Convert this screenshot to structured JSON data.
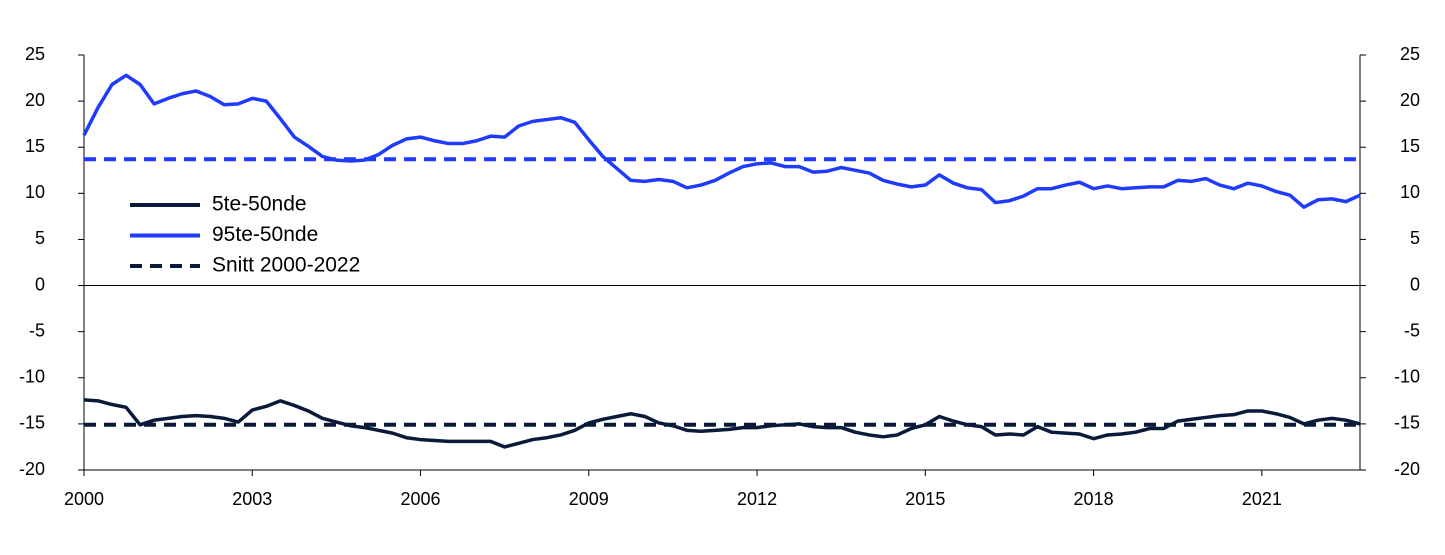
{
  "chart_data": {
    "type": "line",
    "x": [
      2000,
      2000.25,
      2000.5,
      2000.75,
      2001,
      2001.25,
      2001.5,
      2001.75,
      2002,
      2002.25,
      2002.5,
      2002.75,
      2003,
      2003.25,
      2003.5,
      2003.75,
      2004,
      2004.25,
      2004.5,
      2004.75,
      2005,
      2005.25,
      2005.5,
      2005.75,
      2006,
      2006.25,
      2006.5,
      2006.75,
      2007,
      2007.25,
      2007.5,
      2007.75,
      2008,
      2008.25,
      2008.5,
      2008.75,
      2009,
      2009.25,
      2009.5,
      2009.75,
      2010,
      2010.25,
      2010.5,
      2010.75,
      2011,
      2011.25,
      2011.5,
      2011.75,
      2012,
      2012.25,
      2012.5,
      2012.75,
      2013,
      2013.25,
      2013.5,
      2013.75,
      2014,
      2014.25,
      2014.5,
      2014.75,
      2015,
      2015.25,
      2015.5,
      2015.75,
      2016,
      2016.25,
      2016.5,
      2016.75,
      2017,
      2017.25,
      2017.5,
      2017.75,
      2018,
      2018.25,
      2018.5,
      2018.75,
      2019,
      2019.25,
      2019.5,
      2019.75,
      2020,
      2020.25,
      2020.5,
      2020.75,
      2021,
      2021.25,
      2021.5,
      2021.75,
      2022,
      2022.25,
      2022.5,
      2022.75
    ],
    "series": [
      {
        "name": "5te-50nde",
        "color": "#0a1a3a",
        "values": [
          -12.4,
          -12.5,
          -12.9,
          -13.2,
          -15.1,
          -14.6,
          -14.4,
          -14.2,
          -14.1,
          -14.2,
          -14.4,
          -14.8,
          -13.5,
          -13.1,
          -12.5,
          -13.0,
          -13.6,
          -14.4,
          -14.8,
          -15.2,
          -15.4,
          -15.7,
          -16.0,
          -16.5,
          -16.7,
          -16.8,
          -16.9,
          -16.9,
          -16.9,
          -16.9,
          -17.5,
          -17.1,
          -16.7,
          -16.5,
          -16.2,
          -15.7,
          -14.9,
          -14.5,
          -14.2,
          -13.9,
          -14.2,
          -14.9,
          -15.2,
          -15.7,
          -15.8,
          -15.7,
          -15.6,
          -15.4,
          -15.4,
          -15.2,
          -15.1,
          -15.0,
          -15.3,
          -15.4,
          -15.4,
          -15.9,
          -16.2,
          -16.4,
          -16.2,
          -15.5,
          -15.1,
          -14.2,
          -14.7,
          -15.1,
          -15.3,
          -16.2,
          -16.1,
          -16.2,
          -15.3,
          -15.9,
          -16.0,
          -16.1,
          -16.6,
          -16.2,
          -16.1,
          -15.9,
          -15.5,
          -15.5,
          -14.7,
          -14.5,
          -14.3,
          -14.1,
          -14.0,
          -13.6,
          -13.6,
          -13.9,
          -14.3,
          -15.0,
          -14.6,
          -14.4,
          -14.6,
          -15.0
        ]
      },
      {
        "name": "95te-50nde",
        "color": "#1f3bff",
        "values": [
          16.3,
          19.3,
          21.8,
          22.8,
          21.8,
          19.7,
          20.3,
          20.8,
          21.1,
          20.5,
          19.6,
          19.7,
          20.3,
          20.0,
          18.1,
          16.1,
          15.1,
          14.0,
          13.6,
          13.5,
          13.6,
          14.2,
          15.2,
          15.9,
          16.1,
          15.7,
          15.4,
          15.4,
          15.7,
          16.2,
          16.1,
          17.3,
          17.8,
          18.0,
          18.2,
          17.7,
          15.8,
          14.0,
          12.7,
          11.4,
          11.3,
          11.5,
          11.3,
          10.6,
          10.9,
          11.4,
          12.2,
          12.9,
          13.2,
          13.3,
          12.9,
          12.9,
          12.3,
          12.4,
          12.8,
          12.5,
          12.2,
          11.4,
          11.0,
          10.7,
          10.9,
          12.0,
          11.1,
          10.6,
          10.4,
          9.0,
          9.2,
          9.7,
          10.5,
          10.5,
          10.9,
          11.2,
          10.5,
          10.8,
          10.5,
          10.6,
          10.7,
          10.7,
          11.4,
          11.3,
          11.6,
          10.9,
          10.5,
          11.1,
          10.8,
          10.2,
          9.8,
          8.5,
          9.3,
          9.4,
          9.1,
          9.8
        ]
      }
    ],
    "reference_lines": [
      {
        "name": "Snitt 2000-2022",
        "color": "#0a1a3a",
        "value": -15.1
      },
      {
        "color": "#1f3bff",
        "value": 13.7
      }
    ],
    "xlim": [
      2000,
      2022.75
    ],
    "xticks": [
      2000,
      2003,
      2006,
      2009,
      2012,
      2015,
      2018,
      2021
    ],
    "ylim": [
      -20,
      25
    ],
    "yticks": [
      -20,
      -15,
      -10,
      -5,
      0,
      5,
      10,
      15,
      20,
      25
    ],
    "y2lim": [
      -20,
      25
    ],
    "y2ticks": [
      -20,
      -15,
      -10,
      -5,
      0,
      5,
      10,
      15,
      20,
      25
    ],
    "legend": "left"
  }
}
